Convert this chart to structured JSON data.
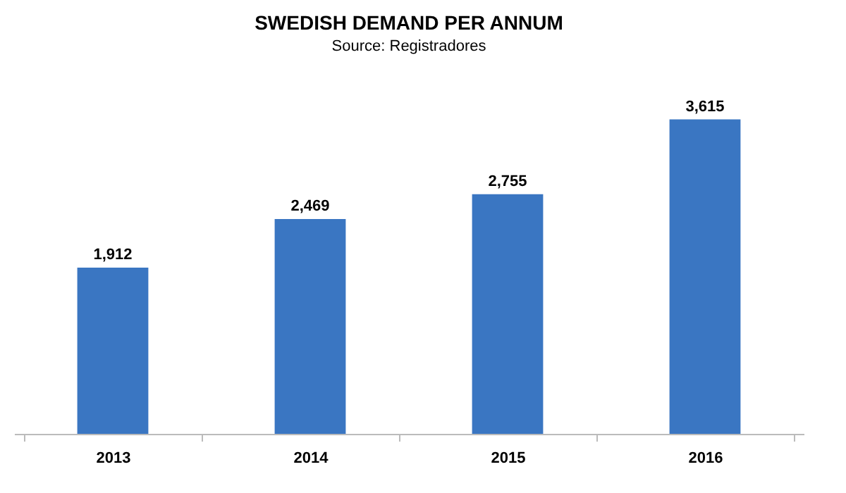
{
  "chart_data": {
    "type": "bar",
    "title": "SWEDISH DEMAND PER ANNUM",
    "subtitle": "Source: Registradores",
    "categories": [
      "2013",
      "2014",
      "2015",
      "2016"
    ],
    "values": [
      1912,
      2469,
      2755,
      3615
    ],
    "color": "#3a76c2",
    "value_labels": [
      "1,912",
      "2,469",
      "2,755",
      "3,615"
    ]
  }
}
